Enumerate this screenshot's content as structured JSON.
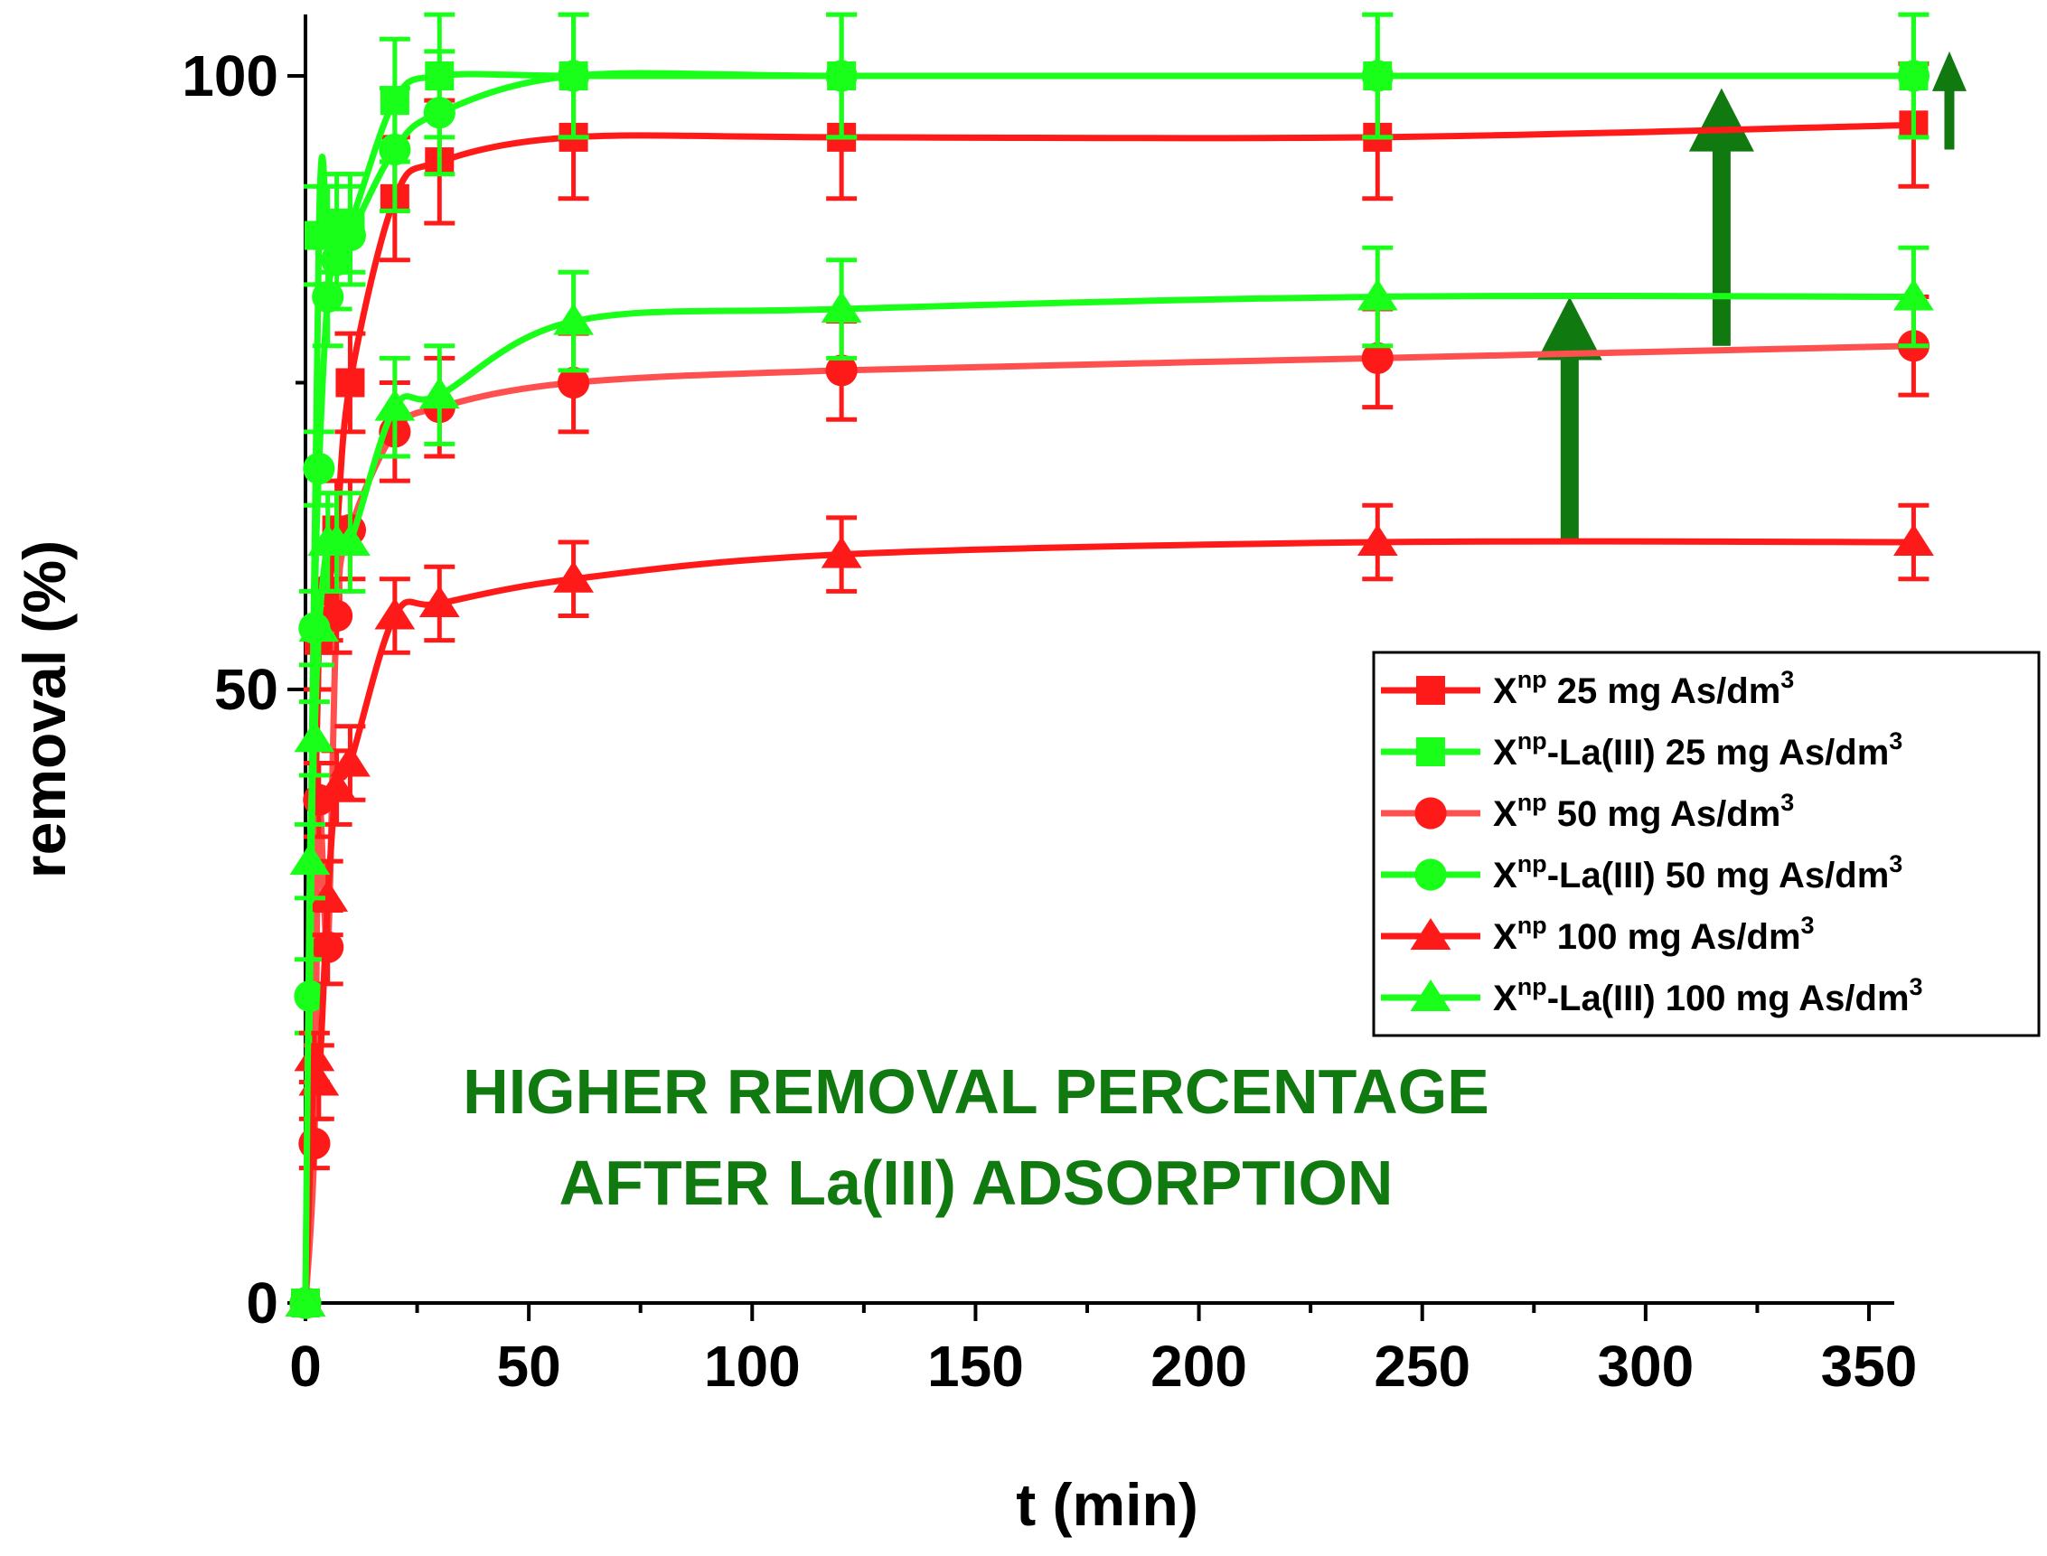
{
  "chart_data": {
    "type": "line",
    "title": "",
    "xlabel": "t (min)",
    "ylabel": "removal (%)",
    "xlim": [
      0,
      360
    ],
    "ylim": [
      0,
      100
    ],
    "x_ticks": [
      0,
      50,
      100,
      150,
      200,
      250,
      300,
      350
    ],
    "y_ticks": [
      0,
      50,
      100
    ],
    "x_tick_labels": [
      "0",
      "50",
      "100",
      "150",
      "200",
      "250",
      "300",
      "350"
    ],
    "y_tick_labels": [
      "0",
      "50",
      "100"
    ],
    "grid": false,
    "legend_position": "right",
    "series": [
      {
        "name": "Xnp 25 mg As/dm3",
        "legend": {
          "base": "X",
          "sup": "np",
          "text": " 25 mg As/dm",
          "sup2": "3"
        },
        "color": "#ff1a1a",
        "marker": "square",
        "x": [
          0,
          3,
          5,
          7,
          10,
          20,
          30,
          60,
          120,
          240,
          360
        ],
        "y": [
          0,
          54,
          58,
          63,
          75,
          90,
          93,
          95,
          95,
          95,
          96
        ],
        "err": [
          0,
          4,
          4,
          4,
          4,
          5,
          5,
          5,
          5,
          5,
          5
        ]
      },
      {
        "name": "Xnp-La(III) 25 mg As/dm3",
        "legend": {
          "base": "X",
          "sup": "np",
          "text": "-La(III) 25 mg As/dm",
          "sup2": "3"
        },
        "color": "#1aff1a",
        "marker": "square",
        "x": [
          0,
          3,
          5,
          7,
          10,
          20,
          30,
          60,
          120,
          240,
          360
        ],
        "y": [
          0,
          87,
          87,
          88,
          88,
          98,
          100,
          100,
          100,
          100,
          100
        ],
        "err": [
          0,
          4,
          4,
          4,
          4,
          5,
          5,
          5,
          5,
          5,
          5
        ]
      },
      {
        "name": "Xnp 50 mg As/dm3",
        "legend": {
          "base": "X",
          "sup": "np",
          "text": " 50 mg As/dm",
          "sup2": "3"
        },
        "color": "#ff1a1a",
        "line_color": "#ff5050",
        "marker": "circle",
        "x": [
          0,
          2,
          3,
          5,
          7,
          10,
          20,
          30,
          60,
          120,
          240,
          360
        ],
        "y": [
          0,
          13,
          41,
          29,
          56,
          63,
          71,
          73,
          75,
          76,
          77,
          78
        ],
        "err": [
          0,
          2,
          3,
          3,
          3,
          4,
          4,
          4,
          4,
          4,
          4,
          4
        ]
      },
      {
        "name": "Xnp-La(III) 50 mg As/dm3",
        "legend": {
          "base": "X",
          "sup": "np",
          "text": "-La(III) 50 mg As/dm",
          "sup2": "3"
        },
        "color": "#1aff1a",
        "marker": "circle",
        "x": [
          0,
          1,
          2,
          3,
          5,
          7,
          10,
          20,
          30,
          60,
          120,
          240,
          360
        ],
        "y": [
          0,
          25,
          55,
          68,
          82,
          85,
          87,
          94,
          97,
          100,
          100,
          100,
          100
        ],
        "err": [
          0,
          3,
          3,
          3,
          4,
          4,
          4,
          5,
          5,
          5,
          5,
          5,
          5
        ]
      },
      {
        "name": "Xnp 100 mg As/dm3",
        "legend": {
          "base": "X",
          "sup": "np",
          "text": " 100 mg As/dm",
          "sup2": "3"
        },
        "color": "#ff1a1a",
        "marker": "triangle",
        "x": [
          0,
          2,
          3,
          5,
          7,
          10,
          20,
          30,
          60,
          120,
          240,
          360
        ],
        "y": [
          0,
          20,
          18,
          33,
          42,
          44,
          56,
          57,
          59,
          61,
          62,
          62
        ],
        "err": [
          0,
          2,
          3,
          3,
          3,
          3,
          3,
          3,
          3,
          3,
          3,
          3
        ]
      },
      {
        "name": "Xnp-La(III) 100 mg As/dm3",
        "legend": {
          "base": "X",
          "sup": "np",
          "text": "-La(III) 100 mg As/dm",
          "sup2": "3"
        },
        "color": "#1aff1a",
        "marker": "triangle",
        "x": [
          0,
          1,
          2,
          3,
          5,
          7,
          10,
          20,
          30,
          60,
          120,
          240,
          360
        ],
        "y": [
          0,
          36,
          46,
          55,
          62,
          62,
          62,
          73,
          74,
          80,
          81,
          82,
          82
        ],
        "err": [
          0,
          3,
          3,
          3,
          4,
          4,
          4,
          4,
          4,
          4,
          4,
          4,
          4
        ]
      }
    ],
    "annotations": [
      {
        "text": "HIGHER REMOVAL PERCENTAGE",
        "color": "#107a10"
      },
      {
        "text": "AFTER La(III) ADSORPTION",
        "color": "#107a10"
      }
    ],
    "arrows": [
      {
        "x": 283,
        "from": 62,
        "to": 82,
        "color": "#107a10"
      },
      {
        "x": 317,
        "from": 78,
        "to": 99,
        "color": "#107a10"
      },
      {
        "x": 368,
        "from": 94,
        "to": 102,
        "color": "#107a10"
      }
    ]
  }
}
